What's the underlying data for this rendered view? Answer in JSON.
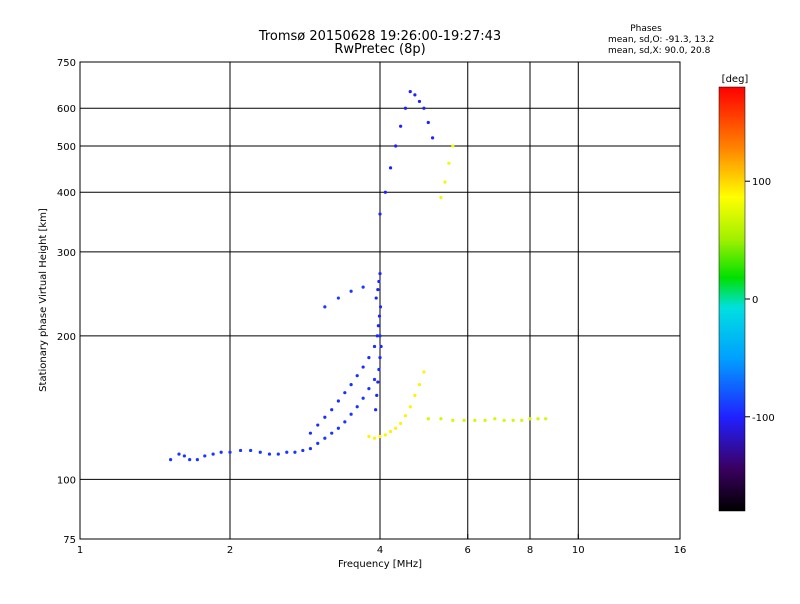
{
  "chart_data": {
    "type": "scatter",
    "title": "Tromsø 20150628 19:26:00-19:27:43",
    "subtitle": "RwPretec (8p)",
    "xlabel": "Frequency [MHz]",
    "ylabel": "Stationary phase Virtual Height [km]",
    "x_scale": "log",
    "y_scale": "log",
    "xlim": [
      1,
      16
    ],
    "ylim": [
      75,
      750
    ],
    "x_ticks": [
      1,
      2,
      4,
      6,
      8,
      10,
      16
    ],
    "x_tick_labels": [
      "1",
      "2",
      "4",
      "6",
      "8",
      "10",
      "16"
    ],
    "y_ticks": [
      75,
      100,
      200,
      300,
      400,
      500,
      600,
      750
    ],
    "y_tick_labels": [
      "75",
      "100",
      "200",
      "300",
      "400",
      "500",
      "600",
      "750"
    ],
    "grid": true,
    "stats": {
      "heading": "Phases",
      "line1": "mean, sd,O: -91.3, 13.2",
      "line2": "mean, sd,X:  90.0, 20.8"
    },
    "colorbar": {
      "label": "[deg]",
      "range": [
        -180,
        180
      ],
      "ticks": [
        100,
        0,
        -100
      ],
      "tick_labels": [
        "100",
        "0",
        "-100"
      ]
    },
    "point_groups": [
      {
        "name": "o_low_trace",
        "phase": -92,
        "x": [
          1.52,
          1.58,
          1.62,
          1.66,
          1.72,
          1.78,
          1.85,
          1.92,
          2.0,
          2.1,
          2.2,
          2.3,
          2.4,
          2.5,
          2.6,
          2.7,
          2.8,
          2.9,
          3.0,
          3.1,
          3.2,
          3.3,
          3.4,
          3.5,
          3.6,
          3.7,
          3.8,
          3.9
        ],
        "y": [
          110,
          113,
          112,
          110,
          110,
          112,
          113,
          114,
          114,
          115,
          115,
          114,
          113,
          113,
          114,
          114,
          115,
          116,
          119,
          122,
          125,
          128,
          132,
          137,
          142,
          148,
          155,
          162
        ]
      },
      {
        "name": "o_low_upper",
        "phase": -95,
        "x": [
          2.9,
          3.0,
          3.1,
          3.2,
          3.3,
          3.4,
          3.5,
          3.6,
          3.7,
          3.8,
          3.9,
          4.0
        ],
        "y": [
          125,
          130,
          135,
          140,
          146,
          152,
          158,
          165,
          172,
          180,
          190,
          200
        ]
      },
      {
        "name": "o_vertical",
        "phase": -98,
        "x": [
          3.92,
          3.94,
          3.96,
          3.98,
          4.0,
          4.02,
          3.95,
          3.97,
          3.99,
          4.01,
          3.93,
          3.96,
          3.98,
          4.0
        ],
        "y": [
          140,
          150,
          160,
          170,
          180,
          190,
          200,
          210,
          220,
          230,
          240,
          250,
          260,
          270
        ]
      },
      {
        "name": "o_oblique",
        "phase": -90,
        "x": [
          3.1,
          3.3,
          3.5,
          3.7
        ],
        "y": [
          230,
          240,
          248,
          253
        ]
      },
      {
        "name": "x_low_trace",
        "phase": 90,
        "x": [
          3.8,
          3.9,
          4.0,
          4.1,
          4.2,
          4.3,
          4.4,
          4.5,
          4.6,
          4.7,
          4.8,
          4.9
        ],
        "y": [
          123,
          122,
          123,
          124,
          126,
          128,
          131,
          136,
          142,
          150,
          158,
          168
        ]
      },
      {
        "name": "x_tail",
        "phase": 70,
        "x": [
          5.0,
          5.3,
          5.6,
          5.9,
          6.2,
          6.5,
          6.8,
          7.1,
          7.4,
          7.7,
          8.0,
          8.3,
          8.6
        ],
        "y": [
          134,
          134,
          133,
          133,
          133,
          133,
          134,
          133,
          133,
          133,
          134,
          134,
          134
        ]
      },
      {
        "name": "f_layer_o",
        "phase": -100,
        "x": [
          4.0,
          4.1,
          4.2,
          4.3,
          4.4,
          4.5,
          4.6,
          4.7,
          4.8,
          4.9,
          5.0,
          5.1
        ],
        "y": [
          360,
          400,
          450,
          500,
          550,
          600,
          650,
          640,
          620,
          600,
          560,
          520
        ]
      },
      {
        "name": "f_layer_x",
        "phase": 80,
        "x": [
          5.3,
          5.4,
          5.5,
          5.6
        ],
        "y": [
          390,
          420,
          460,
          500
        ]
      }
    ]
  }
}
